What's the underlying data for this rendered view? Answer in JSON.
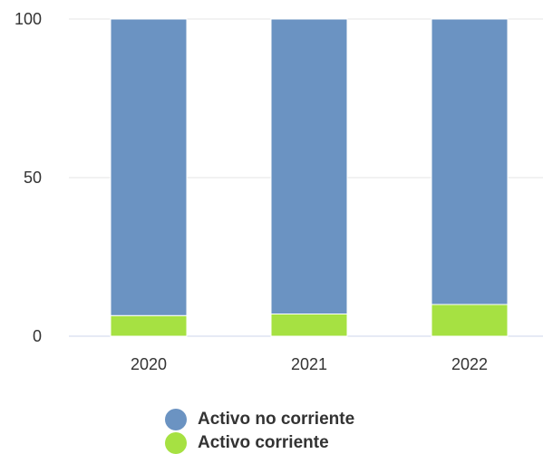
{
  "chart_data": {
    "type": "bar",
    "stacked": true,
    "title": "",
    "xlabel": "",
    "ylabel": "",
    "ylim": [
      0,
      100
    ],
    "yticks": [
      0,
      50,
      100
    ],
    "grid": true,
    "legend_position": "bottom-center",
    "categories": [
      "2020",
      "2021",
      "2022"
    ],
    "series": [
      {
        "name": "Activo corriente",
        "color": "#a6e142",
        "values": [
          6.5,
          7,
          10
        ]
      },
      {
        "name": "Activo no corriente",
        "color": "#6b93c2",
        "values": [
          93.5,
          93,
          90
        ]
      }
    ]
  },
  "legend": {
    "items": [
      {
        "label": "Activo no corriente",
        "color": "#6b93c2"
      },
      {
        "label": "Activo corriente",
        "color": "#a6e142"
      }
    ]
  }
}
